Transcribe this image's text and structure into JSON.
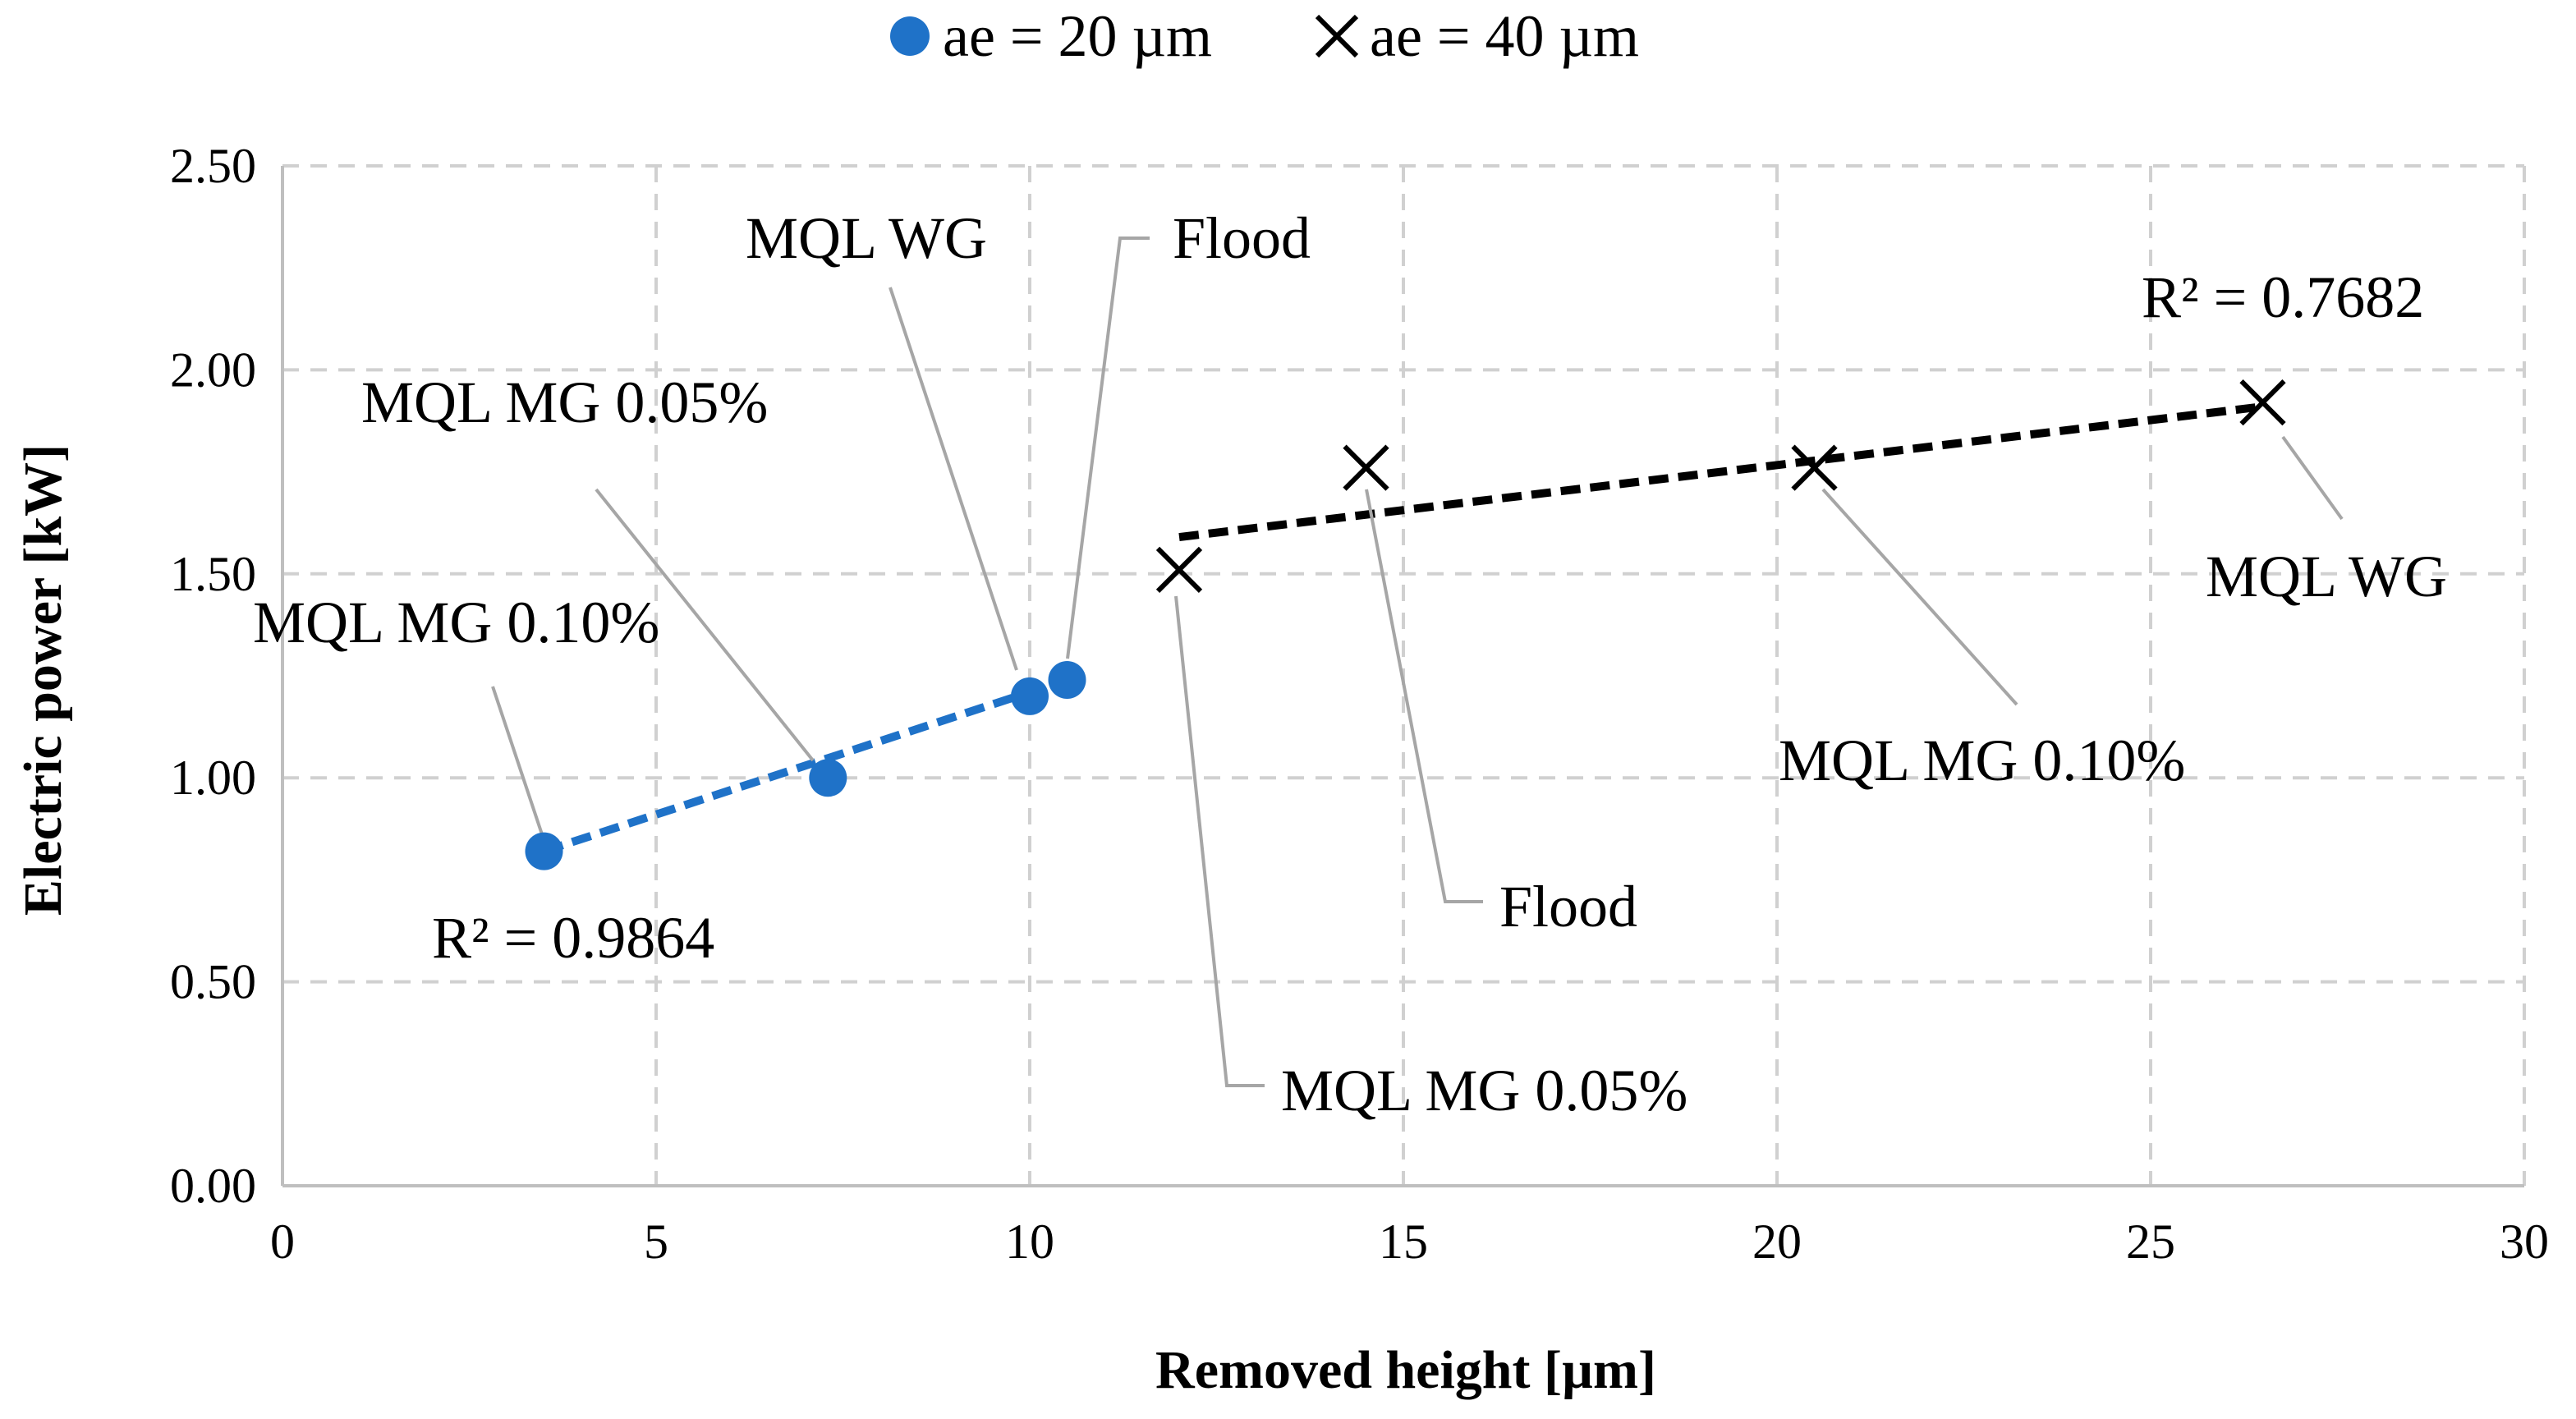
{
  "chart_data": {
    "type": "scatter",
    "xlabel": "Removed height [µm]",
    "ylabel": "Electric power [kW]",
    "xlim": [
      0,
      30
    ],
    "ylim": [
      0,
      2.5
    ],
    "xticks": [
      0,
      5,
      10,
      15,
      20,
      25,
      30
    ],
    "yticks": [
      0.0,
      0.5,
      1.0,
      1.5,
      2.0,
      2.5
    ],
    "xtick_labels": [
      "0",
      "5",
      "10",
      "15",
      "20",
      "25",
      "30"
    ],
    "ytick_labels": [
      "0.00",
      "0.50",
      "1.00",
      "1.50",
      "2.00",
      "2.50"
    ],
    "grid": true,
    "legend_position": "top-center",
    "series": [
      {
        "name": "ae = 20 µm",
        "marker": "circle",
        "color": "#1f72c8",
        "points": [
          {
            "x": 3.5,
            "y": 0.82,
            "label": "MQL MG 0.10%"
          },
          {
            "x": 7.3,
            "y": 1.0,
            "label": "MQL MG 0.05%"
          },
          {
            "x": 10.0,
            "y": 1.2,
            "label": "MQL WG"
          },
          {
            "x": 10.5,
            "y": 1.24,
            "label": "Flood"
          }
        ],
        "trendline": {
          "x": [
            3.5,
            10.5
          ],
          "y": [
            0.82,
            1.24
          ],
          "color": "#1f72c8",
          "r2_label": "R² = 0.9864"
        }
      },
      {
        "name": "ae = 40 µm",
        "marker": "x",
        "color": "#000000",
        "points": [
          {
            "x": 12.0,
            "y": 1.51,
            "label": "MQL MG 0.05%"
          },
          {
            "x": 14.5,
            "y": 1.76,
            "label": "Flood"
          },
          {
            "x": 20.5,
            "y": 1.76,
            "label": "MQL MG 0.10%"
          },
          {
            "x": 26.5,
            "y": 1.92,
            "label": "MQL WG"
          }
        ],
        "trendline": {
          "x": [
            12.0,
            26.5
          ],
          "y": [
            1.59,
            1.91
          ],
          "color": "#000000",
          "r2_label": "R² = 0.7682"
        }
      }
    ]
  }
}
